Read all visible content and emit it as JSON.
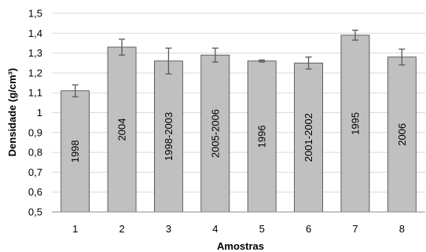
{
  "chart_data": {
    "type": "bar",
    "categories": [
      "1",
      "2",
      "3",
      "4",
      "5",
      "6",
      "7",
      "8"
    ],
    "values": [
      1.11,
      1.33,
      1.26,
      1.29,
      1.26,
      1.25,
      1.39,
      1.28
    ],
    "errors": [
      0.03,
      0.04,
      0.065,
      0.035,
      0.005,
      0.03,
      0.025,
      0.04
    ],
    "bar_labels": [
      "1998",
      "2004",
      "1998-2003",
      "2005-2006",
      "1996",
      "2001-2002",
      "1995",
      "2006"
    ],
    "yticks": [
      "0,5",
      "0,6",
      "0,7",
      "0,8",
      "0,9",
      "1",
      "1,1",
      "1,2",
      "1,3",
      "1,4",
      "1,5"
    ],
    "ylim": [
      0.5,
      1.5
    ],
    "xlabel": "Amostras",
    "ylabel": "Densidade (g/cm³)",
    "grid": true,
    "bar_color": "#c0c0c0",
    "error_bar_color": "#595959"
  }
}
